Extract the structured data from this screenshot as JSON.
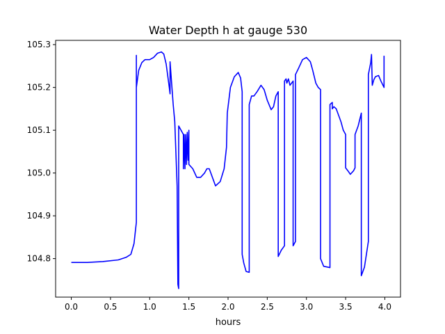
{
  "chart_data": {
    "type": "line",
    "title": "Water Depth h at gauge 530",
    "xlabel": "hours",
    "ylabel": "",
    "xlim": [
      -0.2,
      4.2
    ],
    "ylim": [
      104.71,
      105.31
    ],
    "xticks": [
      0.0,
      0.5,
      1.0,
      1.5,
      2.0,
      2.5,
      3.0,
      3.5,
      4.0
    ],
    "xtick_labels": [
      "0.0",
      "0.5",
      "1.0",
      "1.5",
      "2.0",
      "2.5",
      "3.0",
      "3.5",
      "4.0"
    ],
    "yticks": [
      104.8,
      104.9,
      105.0,
      105.1,
      105.2,
      105.3
    ],
    "ytick_labels": [
      "104.8",
      "104.9",
      "105.0",
      "105.1",
      "105.2",
      "105.3"
    ],
    "grid": false,
    "legend": "none",
    "series": [
      {
        "color": "#0000ff",
        "points": [
          [
            0.0,
            104.791
          ],
          [
            0.2,
            104.791
          ],
          [
            0.4,
            104.793
          ],
          [
            0.6,
            104.797
          ],
          [
            0.7,
            104.803
          ],
          [
            0.76,
            104.81
          ],
          [
            0.8,
            104.835
          ],
          [
            0.83,
            104.885
          ],
          [
            0.83,
            105.275
          ],
          [
            0.83,
            105.2
          ],
          [
            0.86,
            105.24
          ],
          [
            0.9,
            105.258
          ],
          [
            0.94,
            105.265
          ],
          [
            1.0,
            105.265
          ],
          [
            1.05,
            105.27
          ],
          [
            1.1,
            105.28
          ],
          [
            1.15,
            105.283
          ],
          [
            1.18,
            105.278
          ],
          [
            1.21,
            105.255
          ],
          [
            1.25,
            105.2
          ],
          [
            1.26,
            105.185
          ],
          [
            1.26,
            105.26
          ],
          [
            1.28,
            105.21
          ],
          [
            1.3,
            105.16
          ],
          [
            1.32,
            105.12
          ],
          [
            1.35,
            104.97
          ],
          [
            1.36,
            104.74
          ],
          [
            1.37,
            104.73
          ],
          [
            1.37,
            105.11
          ],
          [
            1.4,
            105.1
          ],
          [
            1.43,
            105.09
          ],
          [
            1.43,
            105.01
          ],
          [
            1.44,
            105.09
          ],
          [
            1.45,
            105.01
          ],
          [
            1.46,
            105.09
          ],
          [
            1.47,
            105.02
          ],
          [
            1.48,
            105.095
          ],
          [
            1.49,
            105.03
          ],
          [
            1.5,
            105.1
          ],
          [
            1.5,
            105.02
          ],
          [
            1.55,
            105.01
          ],
          [
            1.6,
            104.99
          ],
          [
            1.65,
            104.99
          ],
          [
            1.7,
            105.0
          ],
          [
            1.73,
            105.01
          ],
          [
            1.76,
            105.01
          ],
          [
            1.8,
            104.99
          ],
          [
            1.84,
            104.97
          ],
          [
            1.9,
            104.98
          ],
          [
            1.95,
            105.01
          ],
          [
            1.98,
            105.06
          ],
          [
            1.99,
            105.14
          ],
          [
            2.03,
            105.2
          ],
          [
            2.08,
            105.225
          ],
          [
            2.13,
            105.235
          ],
          [
            2.16,
            105.222
          ],
          [
            2.18,
            105.19
          ],
          [
            2.18,
            104.81
          ],
          [
            2.2,
            104.79
          ],
          [
            2.23,
            104.77
          ],
          [
            2.27,
            104.768
          ],
          [
            2.27,
            105.16
          ],
          [
            2.3,
            105.18
          ],
          [
            2.33,
            105.18
          ],
          [
            2.37,
            105.19
          ],
          [
            2.42,
            105.205
          ],
          [
            2.46,
            105.195
          ],
          [
            2.5,
            105.17
          ],
          [
            2.55,
            105.148
          ],
          [
            2.58,
            105.155
          ],
          [
            2.61,
            105.18
          ],
          [
            2.64,
            105.19
          ],
          [
            2.64,
            104.805
          ],
          [
            2.68,
            104.82
          ],
          [
            2.72,
            104.83
          ],
          [
            2.72,
            105.215
          ],
          [
            2.74,
            105.22
          ],
          [
            2.75,
            105.21
          ],
          [
            2.77,
            105.22
          ],
          [
            2.79,
            105.205
          ],
          [
            2.83,
            105.215
          ],
          [
            2.83,
            104.83
          ],
          [
            2.86,
            104.84
          ],
          [
            2.86,
            105.23
          ],
          [
            2.9,
            105.245
          ],
          [
            2.95,
            105.265
          ],
          [
            3.0,
            105.27
          ],
          [
            3.05,
            105.26
          ],
          [
            3.08,
            105.24
          ],
          [
            3.12,
            105.21
          ],
          [
            3.15,
            105.2
          ],
          [
            3.18,
            105.195
          ],
          [
            3.18,
            104.8
          ],
          [
            3.22,
            104.782
          ],
          [
            3.3,
            104.779
          ],
          [
            3.3,
            105.16
          ],
          [
            3.33,
            105.165
          ],
          [
            3.33,
            105.15
          ],
          [
            3.35,
            105.155
          ],
          [
            3.38,
            105.15
          ],
          [
            3.41,
            105.135
          ],
          [
            3.44,
            105.12
          ],
          [
            3.47,
            105.1
          ],
          [
            3.5,
            105.09
          ],
          [
            3.5,
            105.012
          ],
          [
            3.53,
            105.005
          ],
          [
            3.56,
            104.997
          ],
          [
            3.6,
            105.005
          ],
          [
            3.62,
            105.012
          ],
          [
            3.62,
            105.09
          ],
          [
            3.66,
            105.11
          ],
          [
            3.7,
            105.14
          ],
          [
            3.7,
            104.76
          ],
          [
            3.74,
            104.78
          ],
          [
            3.79,
            104.84
          ],
          [
            3.79,
            105.23
          ],
          [
            3.82,
            105.258
          ],
          [
            3.83,
            105.277
          ],
          [
            3.84,
            105.205
          ],
          [
            3.86,
            105.218
          ],
          [
            3.88,
            105.225
          ],
          [
            3.92,
            105.228
          ],
          [
            3.95,
            105.215
          ],
          [
            3.99,
            105.2
          ],
          [
            3.99,
            105.274
          ]
        ]
      }
    ]
  }
}
